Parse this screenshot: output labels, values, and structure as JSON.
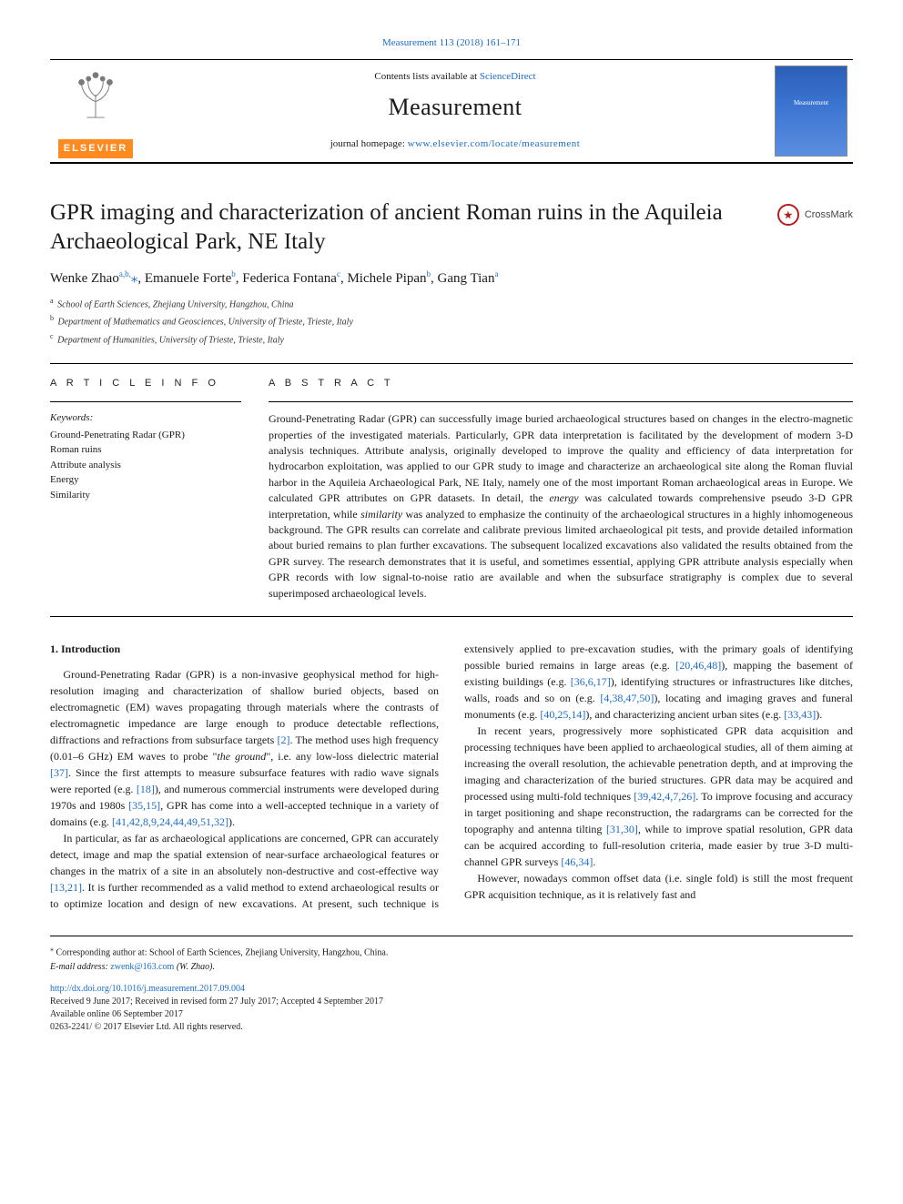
{
  "citation": {
    "text": "Measurement 113 (2018) 161–171"
  },
  "masthead": {
    "contents_prefix": "Contents lists available at ",
    "contents_link": "ScienceDirect",
    "journal": "Measurement",
    "homepage_prefix": "journal homepage: ",
    "homepage_url": "www.elsevier.com/locate/measurement",
    "publisher_word": "ELSEVIER",
    "cover_word": "Measurement"
  },
  "article": {
    "title": "GPR imaging and characterization of ancient Roman ruins in the Aquileia Archaeological Park, NE Italy",
    "crossmark": "CrossMark"
  },
  "authors_html": "Wenke Zhao<sup><a>a</a>,<a>b</a>,</sup><a>⁎</a>, Emanuele Forte<sup><a>b</a></sup>, Federica Fontana<sup><a>c</a></sup>, Michele Pipan<sup><a>b</a></sup>, Gang Tian<sup><a>a</a></sup>",
  "affiliations": [
    {
      "sup": "a",
      "text": "School of Earth Sciences, Zhejiang University, Hangzhou, China"
    },
    {
      "sup": "b",
      "text": "Department of Mathematics and Geosciences, University of Trieste, Trieste, Italy"
    },
    {
      "sup": "c",
      "text": "Department of Humanities, University of Trieste, Trieste, Italy"
    }
  ],
  "info": {
    "heading": "A R T I C L E  I N F O",
    "keywords_label": "Keywords:",
    "keywords": [
      "Ground-Penetrating Radar (GPR)",
      "Roman ruins",
      "Attribute analysis",
      "Energy",
      "Similarity"
    ]
  },
  "abstract": {
    "heading": "A B S T R A C T",
    "text": "Ground-Penetrating Radar (GPR) can successfully image buried archaeological structures based on changes in the electro-magnetic properties of the investigated materials. Particularly, GPR data interpretation is facilitated by the development of modern 3-D analysis techniques. Attribute analysis, originally developed to improve the quality and efficiency of data interpretation for hydrocarbon exploitation, was applied to our GPR study to image and characterize an archaeological site along the Roman fluvial harbor in the Aquileia Archaeological Park, NE Italy, namely one of the most important Roman archaeological areas in Europe. We calculated GPR attributes on GPR datasets. In detail, the energy was calculated towards comprehensive pseudo 3-D GPR interpretation, while similarity was analyzed to emphasize the continuity of the archaeological structures in a highly inhomogeneous background. The GPR results can correlate and calibrate previous limited archaeological pit tests, and provide detailed information about buried remains to plan further excavations. The subsequent localized excavations also validated the results obtained from the GPR survey. The research demonstrates that it is useful, and sometimes essential, applying GPR attribute analysis especially when GPR records with low signal-to-noise ratio are available and when the subsurface stratigraphy is complex due to several superimposed archaeological levels."
  },
  "body": {
    "section_heading": "1. Introduction",
    "p1a": "Ground-Penetrating Radar (GPR) is a non-invasive geophysical method for high-resolution imaging and characterization of shallow buried objects, based on electromagnetic (EM) waves propagating through materials where the contrasts of electromagnetic impedance are large enough to produce detectable reflections, diffractions and refractions from subsurface targets ",
    "ref_2": "[2]",
    "p1b": ". The method uses high frequency (0.01–6 GHz) EM waves to probe \"",
    "p1_em": "the ground",
    "p1c": "\", i.e. any low-loss dielectric material ",
    "ref_37": "[37]",
    "p1d": ". Since the first attempts to measure subsurface features with radio wave signals were reported (e.g. ",
    "ref_18": "[18]",
    "p1e": "), and numerous commercial instruments were developed during 1970s and 1980s ",
    "ref_35_15": "[35,15]",
    "p1f": ", GPR has come into a well-accepted technique in a variety of domains (e.g. ",
    "ref_group1": "[41,42,8,9,24,44,49,51,32]",
    "p1g": ").",
    "p2a": "In particular, as far as archaeological applications are concerned, GPR can accurately detect, image and map the spatial extension of near-surface archaeological features or changes in the matrix of a site in an absolutely non-destructive and cost-effective way ",
    "ref_13_21": "[13,21]",
    "p2b": ". It is further recommended as a valid method to extend archaeological results or to optimize location and design of new excavations. At present, such technique is extensively applied to pre-excavation studies, with the primary goals of identifying possible buried remains in large areas (e.g. ",
    "ref_20_46_48": "[20,46,48]",
    "p2c": "), mapping the basement of existing buildings (e.g. ",
    "ref_36_6_17": "[36,6,17]",
    "p2d": "), identifying structures or infrastructures like ditches, walls, roads and so on (e.g. ",
    "ref_4_38_47_50": "[4,38,47,50]",
    "p2e": "), locating and imaging graves and funeral monuments (e.g. ",
    "ref_40_25_14": "[40,25,14]",
    "p2f": "), and characterizing ancient urban sites (e.g. ",
    "ref_33_43": "[33,43]",
    "p2g": ").",
    "p3a": "In recent years, progressively more sophisticated GPR data acquisition and processing techniques have been applied to archaeological studies, all of them aiming at increasing the overall resolution, the achievable penetration depth, and at improving the imaging and characterization of the buried structures. GPR data may be acquired and processed using multi-fold techniques ",
    "ref_39_42_4_7_26": "[39,42,4,7,26]",
    "p3b": ". To improve focusing and accuracy in target positioning and shape reconstruction, the radargrams can be corrected for the topography and antenna tilting ",
    "ref_31_30": "[31,30]",
    "p3c": ", while to improve spatial resolution, GPR data can be acquired according to full-resolution criteria, made easier by true 3-D multi-channel GPR surveys ",
    "ref_46_34": "[46,34]",
    "p3d": ".",
    "p4": "However, nowadays common offset data (i.e. single fold) is still the most frequent GPR acquisition technique, as it is relatively fast and"
  },
  "footer": {
    "corr": "Corresponding author at: School of Earth Sciences, Zhejiang University, Hangzhou, China.",
    "email_label": "E-mail address: ",
    "email": "zwenk@163.com",
    "email_tail": " (W. Zhao).",
    "doi": "http://dx.doi.org/10.1016/j.measurement.2017.09.004",
    "history1": "Received 9 June 2017; Received in revised form 27 July 2017; Accepted 4 September 2017",
    "history2": "Available online 06 September 2017",
    "copyright": "0263-2241/ © 2017 Elsevier Ltd. All rights reserved."
  },
  "colors": {
    "link": "#1a6cc7",
    "elsevier_orange": "#ff8a1f",
    "crossmark_red": "#b71c1c",
    "cover_gradient_top": "#2b5fb8",
    "cover_gradient_bottom": "#5a8ee0",
    "text": "#1a1a1a",
    "background": "#ffffff"
  },
  "typography": {
    "body_font": "Times New Roman",
    "title_size_pt": 25,
    "journal_title_size_pt": 26,
    "body_size_pt": 12,
    "abstract_size_pt": 12,
    "footer_size_pt": 10
  }
}
